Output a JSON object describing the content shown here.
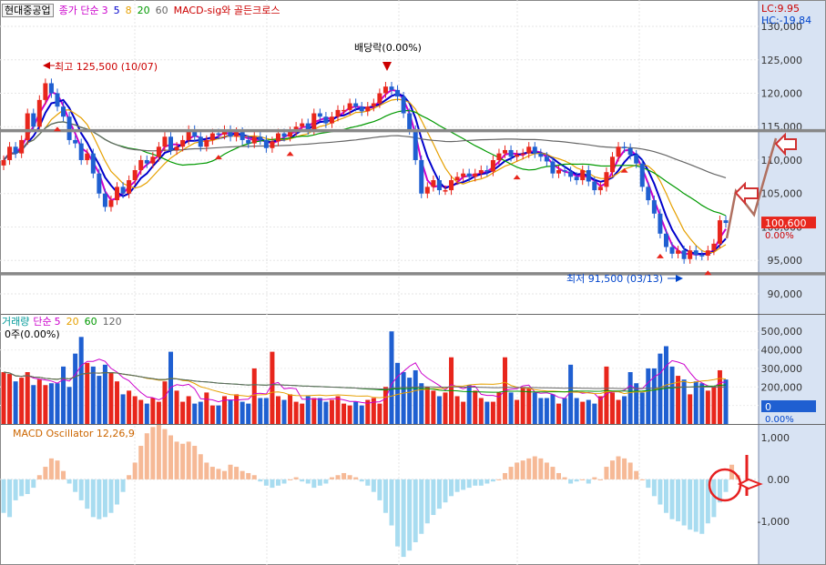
{
  "stock_name": "현대중공업",
  "price_legend": {
    "label": "종가 단순",
    "periods": [
      "3",
      "5",
      "8",
      "20",
      "60"
    ],
    "colors": [
      "#cc00cc",
      "#0000cc",
      "#e6a000",
      "#009900",
      "#666666"
    ],
    "indicator": "MACD-sig와 골든크로스"
  },
  "lc_label": "LC:9.95",
  "hc_label": "HC:-19.84",
  "annotations": {
    "high": "최고 125,500 (10/07)",
    "low": "최저 91,500 (03/13)",
    "dividend": "배당락(0.00%)"
  },
  "price_axis": {
    "ticks": [
      "130,000",
      "125,000",
      "120,000",
      "115,000",
      "110,000",
      "105,000",
      "100,000",
      "95,000",
      "90,000"
    ],
    "current": "100,600",
    "current_pct": "0.00%"
  },
  "volume_legend": {
    "label": "거래량",
    "ma_label": "단순",
    "periods": [
      "5",
      "20",
      "60",
      "120"
    ],
    "colors": [
      "#cc00cc",
      "#e6a000",
      "#009900",
      "#666666"
    ],
    "current": "0주(0.00%)"
  },
  "volume_axis": {
    "ticks": [
      "500,000",
      "400,000",
      "300,000",
      "200,000",
      "100,000"
    ],
    "current": "0",
    "current_pct": "0.00%"
  },
  "macd_legend": "MACD Oscillator 12,26,9",
  "macd_axis": {
    "ticks": [
      "1,000",
      "0.00",
      "-1,000"
    ]
  },
  "colors": {
    "up": "#e8261c",
    "down": "#1f5fd1",
    "osc_pos": "#f6b996",
    "osc_neg": "#a8dcf0",
    "axis_bg": "#d8e3f3",
    "accent": "#cc0000"
  },
  "chart_data": [
    {
      "type": "candlestick",
      "title": "현대중공업",
      "series": [
        {
          "name": "종가",
          "close": [
            110000,
            112000,
            111000,
            113000,
            117000,
            115000,
            119000,
            121500,
            120000,
            118000,
            116500,
            113000,
            112500,
            110000,
            111000,
            108000,
            105000,
            103000,
            104000,
            106000,
            105000,
            107000,
            108500,
            110000,
            109500,
            110500,
            112000,
            113500,
            111500,
            112000,
            113000,
            114500,
            113500,
            112000,
            113000,
            114000,
            113800,
            114500,
            113500,
            114200,
            113000,
            112500,
            113500,
            113000,
            111800,
            112800,
            114000,
            113500,
            114300,
            115000,
            115500,
            114500,
            117000,
            116500,
            115500,
            116500,
            117500,
            117500,
            118500,
            118000,
            117300,
            118000,
            118500,
            120000,
            121000,
            120500,
            119500,
            117000,
            114500,
            110000,
            105000,
            106000,
            107000,
            105500,
            105500,
            107000,
            107500,
            108000,
            107500,
            108000,
            108500,
            108300,
            110000,
            111000,
            111500,
            110500,
            110800,
            111000,
            112000,
            111000,
            110500,
            109800,
            108000,
            108500,
            108300,
            107500,
            107000,
            108500,
            106800,
            105500,
            106000,
            108200,
            110500,
            112000,
            111800,
            110800,
            109500,
            106000,
            104000,
            102000,
            99000,
            97000,
            96000,
            96500,
            95200,
            96500,
            95800,
            95700,
            96500,
            97500,
            101000,
            100600
          ]
        },
        {
          "name": "최고",
          "value": 125500,
          "date": "10/07"
        },
        {
          "name": "최저",
          "value": 91500,
          "date": "03/13"
        }
      ],
      "ylim": [
        87000,
        131500
      ],
      "horizontal_lines": [
        114400,
        93000
      ],
      "moving_averages": [
        "3",
        "5",
        "8",
        "20",
        "60"
      ]
    },
    {
      "type": "bar",
      "title": "거래량",
      "values": [
        280000,
        270000,
        230000,
        250000,
        280000,
        210000,
        240000,
        210000,
        220000,
        220000,
        310000,
        200000,
        380000,
        470000,
        330000,
        310000,
        260000,
        320000,
        280000,
        230000,
        160000,
        180000,
        150000,
        130000,
        110000,
        140000,
        120000,
        230000,
        390000,
        180000,
        120000,
        150000,
        110000,
        120000,
        170000,
        100000,
        100000,
        150000,
        130000,
        160000,
        120000,
        110000,
        300000,
        140000,
        140000,
        390000,
        150000,
        130000,
        160000,
        120000,
        110000,
        150000,
        140000,
        140000,
        120000,
        130000,
        150000,
        110000,
        100000,
        120000,
        100000,
        130000,
        140000,
        110000,
        200000,
        500000,
        330000,
        280000,
        250000,
        290000,
        220000,
        200000,
        180000,
        150000,
        170000,
        360000,
        150000,
        120000,
        210000,
        180000,
        140000,
        120000,
        120000,
        170000,
        360000,
        170000,
        130000,
        200000,
        190000,
        170000,
        140000,
        140000,
        160000,
        110000,
        140000,
        320000,
        140000,
        120000,
        130000,
        110000,
        150000,
        310000,
        170000,
        130000,
        150000,
        280000,
        220000,
        170000,
        300000,
        300000,
        380000,
        420000,
        310000,
        260000,
        240000,
        160000,
        230000,
        220000,
        180000,
        200000,
        290000,
        240000
      ],
      "ylim": [
        0,
        560000
      ],
      "moving_averages": [
        "5",
        "20",
        "60",
        "120"
      ]
    },
    {
      "type": "bar",
      "title": "MACD Oscillator 12,26,9",
      "values": [
        -800,
        -900,
        -500,
        -400,
        -350,
        -200,
        100,
        300,
        500,
        450,
        200,
        -100,
        -300,
        -500,
        -700,
        -900,
        -950,
        -900,
        -800,
        -600,
        -300,
        100,
        400,
        800,
        1100,
        1250,
        1300,
        1200,
        1050,
        900,
        850,
        900,
        800,
        600,
        400,
        300,
        250,
        200,
        350,
        300,
        200,
        150,
        100,
        -50,
        -150,
        -200,
        -150,
        -100,
        0,
        50,
        -50,
        -100,
        -200,
        -150,
        -100,
        50,
        100,
        150,
        100,
        50,
        -50,
        -150,
        -300,
        -500,
        -800,
        -1100,
        -1600,
        -1850,
        -1700,
        -1500,
        -1300,
        -1050,
        -850,
        -700,
        -550,
        -400,
        -300,
        -250,
        -200,
        -150,
        -150,
        -100,
        -50,
        0,
        150,
        300,
        400,
        450,
        500,
        550,
        500,
        400,
        300,
        150,
        50,
        -100,
        -50,
        0,
        -100,
        50,
        0,
        300,
        450,
        550,
        500,
        400,
        200,
        0,
        -200,
        -400,
        -600,
        -800,
        -950,
        -1000,
        -1100,
        -1200,
        -1250,
        -1300,
        -1050,
        -900,
        -550,
        -300,
        350,
        100
      ],
      "ylim": [
        -2000,
        1300
      ]
    }
  ]
}
